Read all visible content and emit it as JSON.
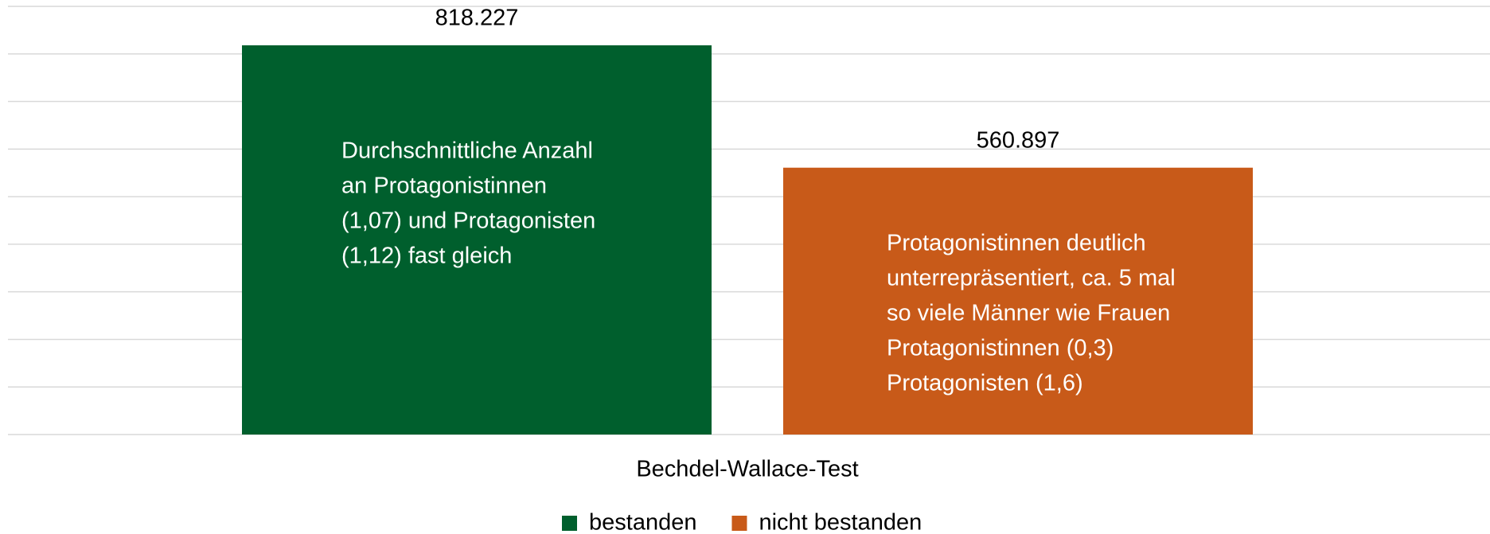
{
  "chart_data": {
    "type": "bar",
    "categories": [
      "Bechdel-Wallace-Test"
    ],
    "series": [
      {
        "name": "bestanden",
        "color": "#005f2d",
        "values": [
          818227
        ],
        "value_labels": [
          "818.227"
        ],
        "annotation": [
          "Durchschnittliche Anzahl",
          "an  Protagonistinnen",
          "(1,07) und Protagonisten",
          "(1,12) fast gleich"
        ]
      },
      {
        "name": "nicht bestanden",
        "color": "#c85a19",
        "values": [
          560897
        ],
        "value_labels": [
          "560.897"
        ],
        "annotation": [
          "Protagonistinnen deutlich",
          "unterrepräsentiert, ca. 5 mal",
          "so viele Männer wie Frauen",
          "Protagonistinnen (0,3)",
          "Protagonisten  (1,6)"
        ]
      }
    ],
    "ylim": [
      0,
      900000
    ],
    "yticks": [
      0,
      100000,
      200000,
      300000,
      400000,
      500000,
      600000,
      700000,
      800000,
      900000
    ],
    "grid": true,
    "legend": "bottom"
  }
}
